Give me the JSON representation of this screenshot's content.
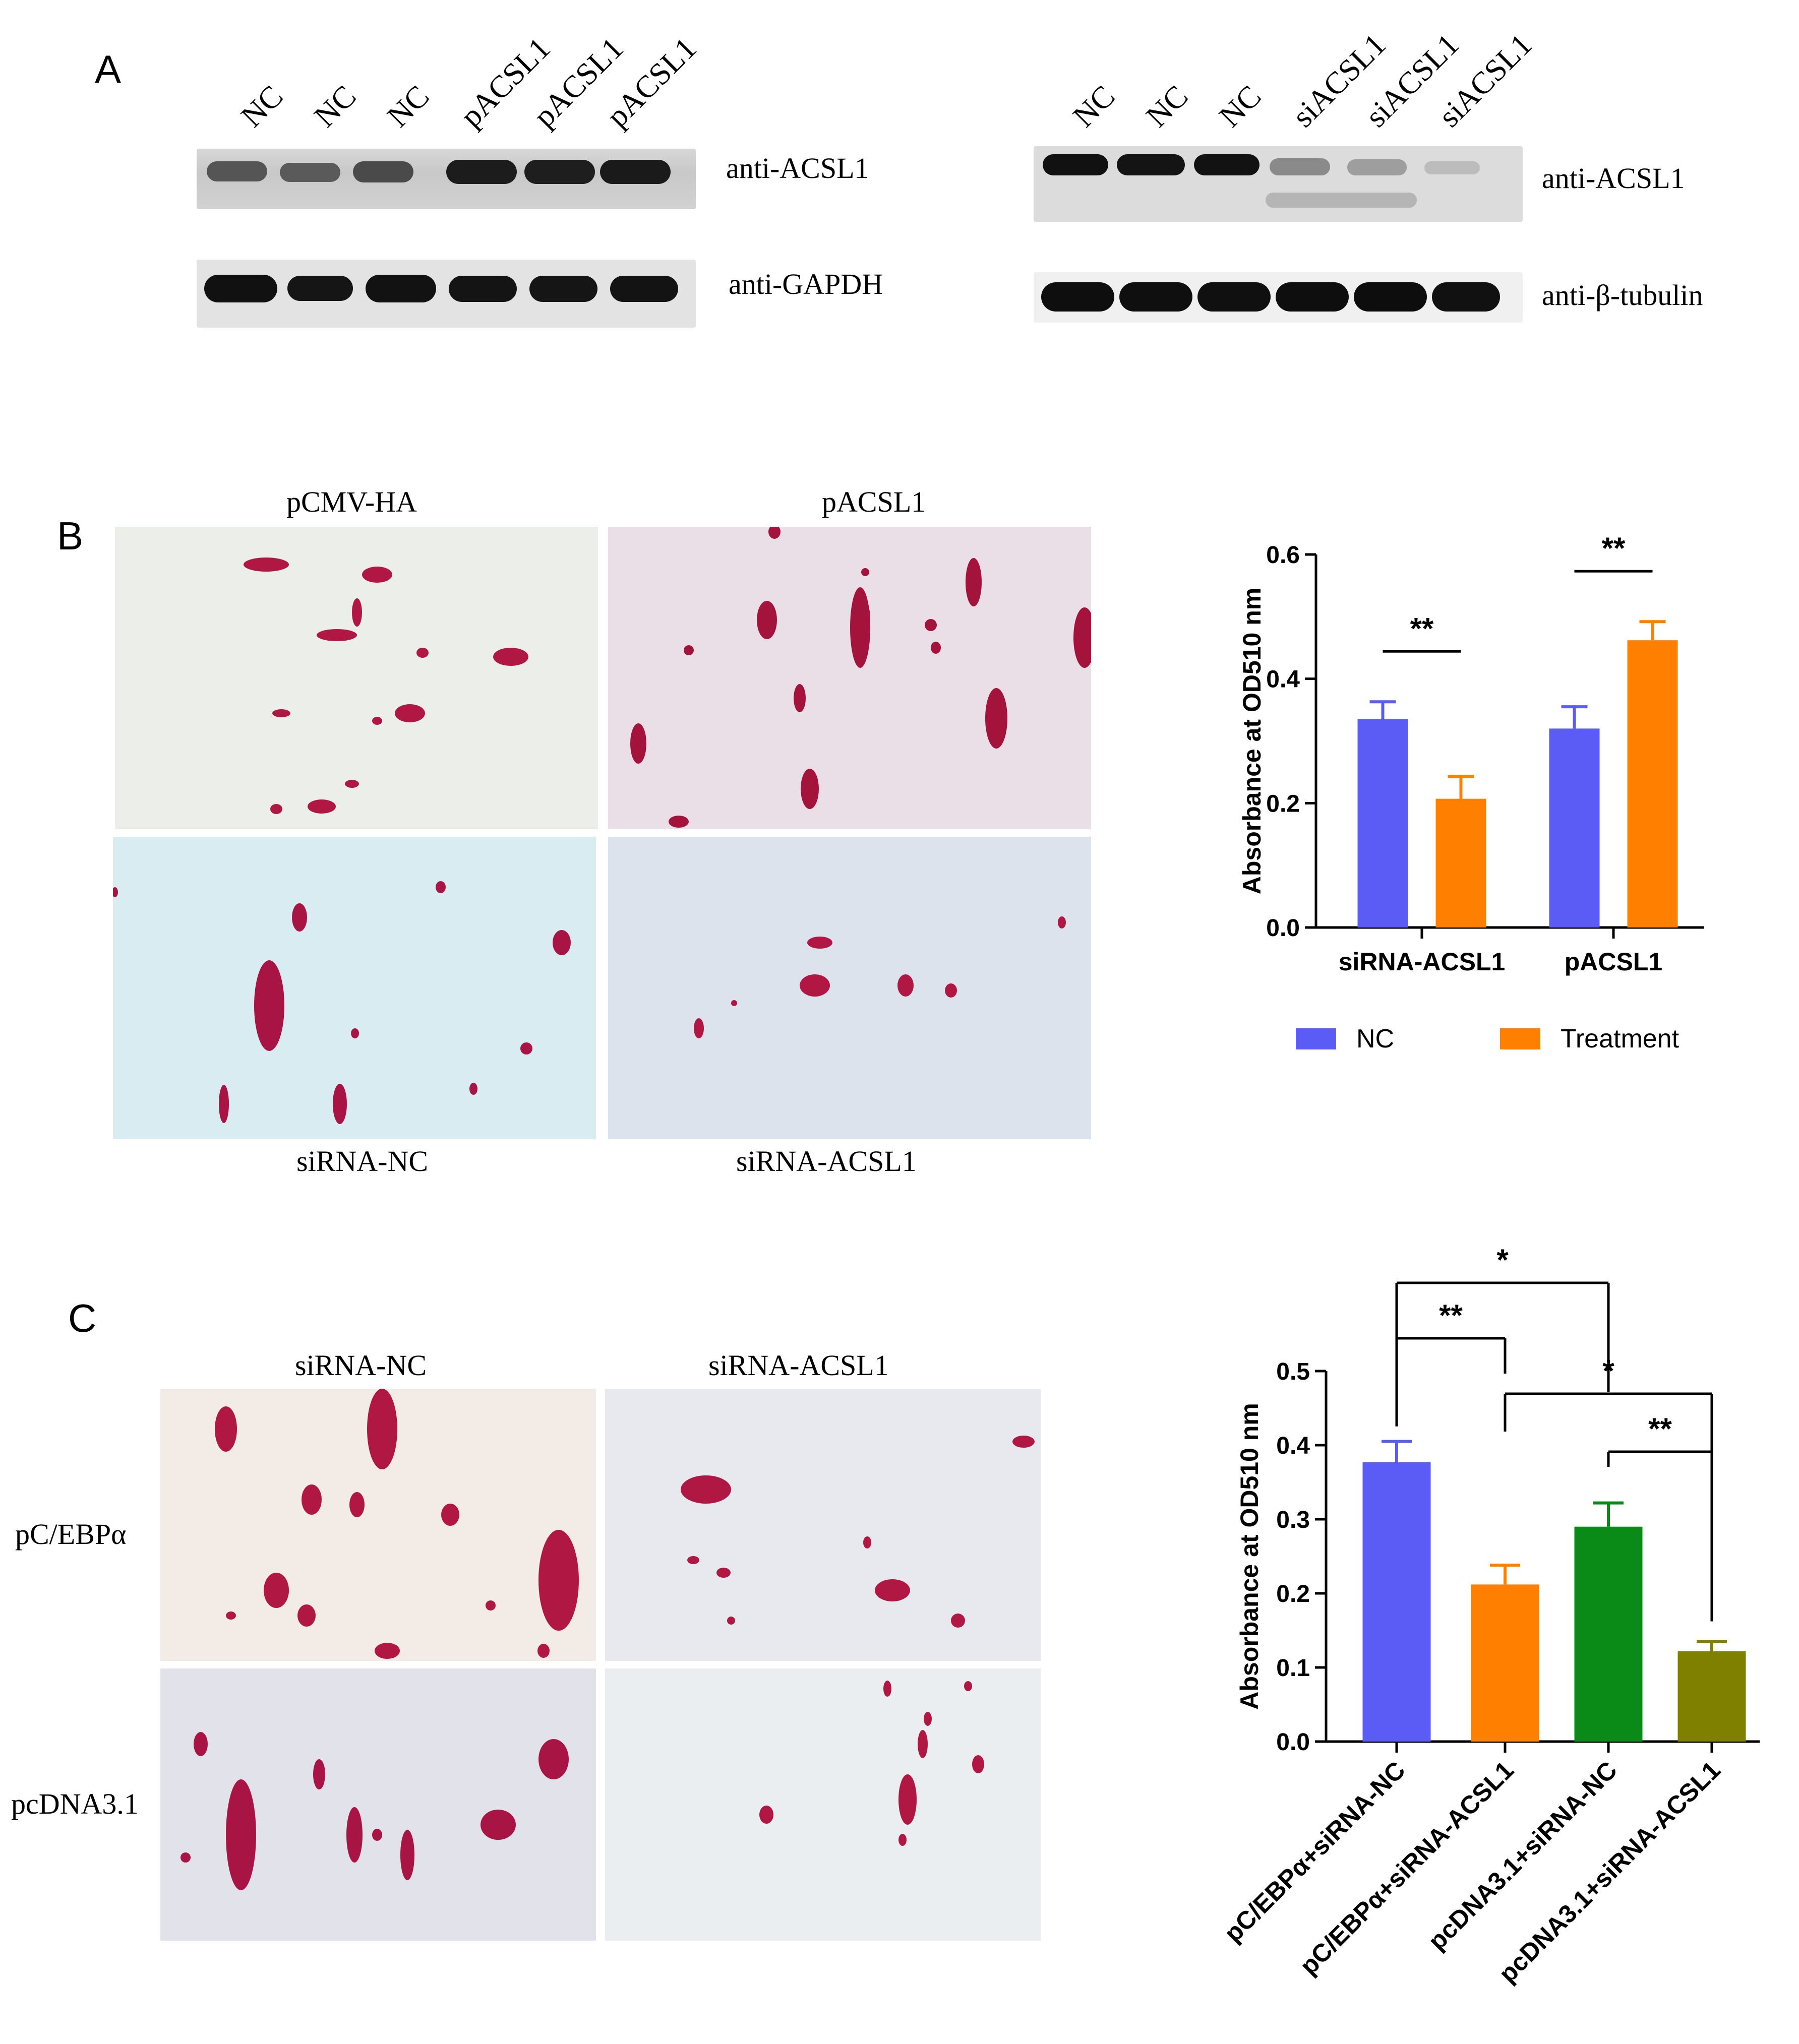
{
  "panels": {
    "a": {
      "letter": "A"
    },
    "b": {
      "letter": "B"
    },
    "c": {
      "letter": "C"
    }
  },
  "blot_left": {
    "lanes": [
      "NC",
      "NC",
      "NC",
      "pACSL1",
      "pACSL1",
      "pACSL1"
    ],
    "target_label": "anti-ACSL1",
    "control_label": "anti-GAPDH"
  },
  "blot_right": {
    "lanes": [
      "NC",
      "NC",
      "NC",
      "siACSL1",
      "siACSL1",
      "siACSL1"
    ],
    "target_label": "anti-ACSL1",
    "control_label": "anti-β-tubulin"
  },
  "micrographs_b": {
    "top_left": "pCMV-HA",
    "top_right": "pACSL1",
    "bottom_left": "siRNA-NC",
    "bottom_right": "siRNA-ACSL1"
  },
  "micrographs_c": {
    "col_left": "siRNA-NC",
    "col_right": "siRNA-ACSL1",
    "row_top": "pC/EBPα",
    "row_bottom": "pcDNA3.1"
  },
  "colors": {
    "nc": "#5b5bf5",
    "treatment": "#ff8000",
    "green": "#0a8a16",
    "olive": "#808000",
    "stain": "#b01843"
  },
  "chart_data": [
    {
      "type": "bar",
      "panel": "B",
      "categories": [
        "siRNA-ACSL1",
        "pACSL1"
      ],
      "series": [
        {
          "name": "NC",
          "values": [
            0.335,
            0.32
          ],
          "errors": [
            0.028,
            0.035
          ]
        },
        {
          "name": "Treatment",
          "values": [
            0.207,
            0.462
          ],
          "errors": [
            0.036,
            0.03
          ]
        }
      ],
      "ylabel": "Absorbance at OD510 nm",
      "ylim": [
        0,
        0.6
      ],
      "yticks": [
        "0.0",
        "0.2",
        "0.4",
        "0.6"
      ],
      "significance": [
        {
          "category": "siRNA-ACSL1",
          "label": "**"
        },
        {
          "category": "pACSL1",
          "label": "**"
        }
      ],
      "legend": "bottom"
    },
    {
      "type": "bar",
      "panel": "C",
      "categories": [
        "pC/EBPα+siRNA-NC",
        "pC/EBPα+siRNA-ACSL1",
        "pcDNA3.1+siRNA-NC",
        "pcDNA3.1+siRNA-ACSL1"
      ],
      "values": [
        0.377,
        0.212,
        0.29,
        0.122
      ],
      "errors": [
        0.028,
        0.026,
        0.032,
        0.013
      ],
      "ylabel": "Absorbance at OD510 nm",
      "ylim": [
        0,
        0.5
      ],
      "yticks": [
        "0.0",
        "0.1",
        "0.2",
        "0.3",
        "0.4",
        "0.5"
      ],
      "significance": [
        {
          "from": 0,
          "to": 2,
          "label": "*"
        },
        {
          "from": 0,
          "to": 1,
          "label": "**"
        },
        {
          "from": 1,
          "to": 3,
          "label": "*"
        },
        {
          "from": 2,
          "to": 3,
          "label": "**"
        }
      ]
    }
  ]
}
